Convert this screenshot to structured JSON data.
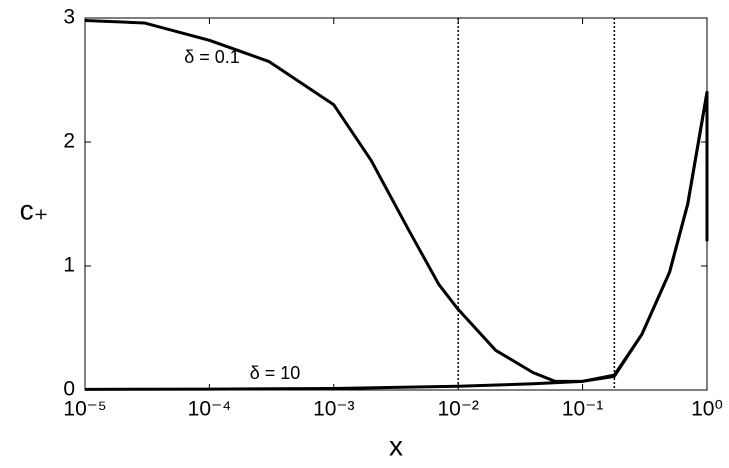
{
  "chart_data": {
    "type": "line",
    "xlabel": "x",
    "ylabel": "c₊",
    "xscale": "log",
    "xlim": [
      1e-05,
      1
    ],
    "ylim": [
      0,
      3
    ],
    "xticks": [
      {
        "value": 1e-05,
        "label": "10⁻⁵"
      },
      {
        "value": 0.0001,
        "label": "10⁻⁴"
      },
      {
        "value": 0.001,
        "label": "10⁻³"
      },
      {
        "value": 0.01,
        "label": "10⁻²"
      },
      {
        "value": 0.1,
        "label": "10⁻¹"
      },
      {
        "value": 1,
        "label": "10⁰"
      }
    ],
    "yticks": [
      0,
      1,
      2,
      3
    ],
    "vlines": [
      0.01,
      0.18
    ],
    "series": [
      {
        "name": "δ = 0.1",
        "color": "#000000",
        "x": [
          1e-05,
          3e-05,
          0.0001,
          0.0003,
          0.001,
          0.002,
          0.004,
          0.007,
          0.01,
          0.02,
          0.04,
          0.06,
          0.1,
          0.18,
          0.3,
          0.5,
          0.7,
          1,
          1
        ],
        "values": [
          2.98,
          2.96,
          2.82,
          2.65,
          2.3,
          1.85,
          1.29,
          0.85,
          0.65,
          0.32,
          0.14,
          0.07,
          0.07,
          0.12,
          0.45,
          0.95,
          1.5,
          2.4,
          1.2
        ]
      },
      {
        "name": "δ = 10",
        "color": "#000000",
        "x": [
          1e-05,
          0.0001,
          0.001,
          0.01,
          0.04,
          0.1,
          0.18,
          0.3,
          0.5,
          0.7,
          1,
          1
        ],
        "values": [
          0.005,
          0.007,
          0.012,
          0.03,
          0.05,
          0.07,
          0.11,
          0.45,
          0.95,
          1.5,
          2.4,
          1.2
        ]
      }
    ]
  }
}
